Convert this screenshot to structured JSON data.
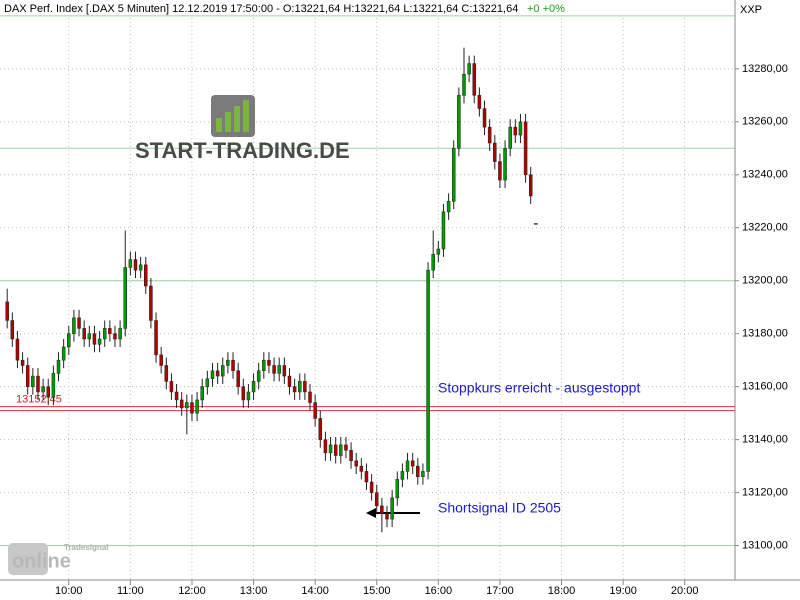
{
  "chart_data": {
    "type": "candlestick",
    "title": "DAX Perf. Index [.DAX  5 Minuten] 12.12.2019 17:50:00 - O:13221,64 H:13221,64 L:13221,64 C:13221,64",
    "change": "+0 +0%",
    "symbol": "XXP",
    "logo": "START-TRADING.DE",
    "watermark": {
      "brand": "Tradesignal",
      "product": "online"
    },
    "x": [
      540,
      545,
      550,
      555,
      560,
      565,
      570,
      575,
      580,
      585,
      590,
      595,
      600,
      605,
      610,
      615,
      620,
      625,
      630,
      635,
      640,
      645,
      650,
      655,
      660,
      665,
      670,
      675,
      680,
      685,
      690,
      695,
      700,
      705,
      710,
      715,
      720,
      725,
      730,
      735,
      740,
      745,
      750,
      755,
      760,
      765,
      770,
      775,
      780,
      785,
      790,
      795,
      800,
      805,
      810,
      815,
      820,
      825,
      830,
      835,
      840,
      845,
      850,
      855,
      860,
      865,
      870,
      875,
      880,
      885,
      890,
      895,
      900,
      905,
      910,
      915,
      920,
      925,
      930,
      935,
      940,
      945,
      950,
      955,
      960,
      965,
      970,
      975,
      980,
      985,
      990,
      995,
      1000,
      1005,
      1010,
      1015,
      1020,
      1025,
      1030,
      1035,
      1040,
      1045,
      1050,
      1055
    ],
    "open": [
      13192,
      13185,
      13178,
      13170,
      13168,
      13160,
      13164,
      13158,
      13160,
      13156,
      13165,
      13170,
      13175,
      13180,
      13186,
      13182,
      13178,
      13180,
      13176,
      13178,
      13182,
      13180,
      13178,
      13182,
      13205,
      13208,
      13204,
      13206,
      13198,
      13185,
      13172,
      13168,
      13162,
      13158,
      13155,
      13152,
      13154,
      13150,
      13155,
      13160,
      13163,
      13166,
      13164,
      13168,
      13170,
      13166,
      13160,
      13155,
      13158,
      13162,
      13166,
      13170,
      13168,
      13165,
      13168,
      13164,
      13160,
      13158,
      13162,
      13158,
      13154,
      13148,
      13140,
      13135,
      13138,
      13134,
      13138,
      13136,
      13132,
      13130,
      13128,
      13124,
      13120,
      13115,
      13112,
      13110,
      13118,
      13125,
      13128,
      13132,
      13130,
      13126,
      13128,
      13204,
      13210,
      13212,
      13226,
      13230,
      13250,
      13270,
      13278,
      13282,
      13270,
      13265,
      13258,
      13252,
      13245,
      13238,
      13250,
      13258,
      13255,
      13260,
      13240,
      13221.64
    ],
    "high": [
      13197,
      13188,
      13181,
      13173,
      13171,
      13167,
      13167,
      13163,
      13163,
      13168,
      13173,
      13178,
      13183,
      13189,
      13189,
      13185,
      13183,
      13183,
      13181,
      13185,
      13185,
      13183,
      13185,
      13219,
      13211,
      13211,
      13209,
      13209,
      13201,
      13188,
      13175,
      13171,
      13165,
      13161,
      13158,
      13157,
      13157,
      13158,
      13163,
      13166,
      13169,
      13169,
      13171,
      13173,
      13173,
      13169,
      13163,
      13161,
      13165,
      13169,
      13173,
      13173,
      13171,
      13171,
      13171,
      13167,
      13163,
      13165,
      13165,
      13161,
      13157,
      13151,
      13143,
      13141,
      13141,
      13141,
      13141,
      13139,
      13135,
      13133,
      13131,
      13127,
      13123,
      13118,
      13115,
      13121,
      13128,
      13131,
      13135,
      13135,
      13133,
      13131,
      13207,
      13219,
      13215,
      13229,
      13233,
      13253,
      13273,
      13288,
      13285,
      13285,
      13273,
      13268,
      13261,
      13255,
      13248,
      13253,
      13261,
      13261,
      13263,
      13263,
      13243,
      13221.64
    ],
    "low": [
      13182,
      13175,
      13167,
      13165,
      13157,
      13157,
      13155,
      13155,
      13153,
      13153,
      13162,
      13167,
      13172,
      13177,
      13179,
      13175,
      13175,
      13173,
      13173,
      13175,
      13177,
      13175,
      13175,
      13179,
      13202,
      13201,
      13201,
      13195,
      13182,
      13169,
      13165,
      13159,
      13155,
      13152,
      13149,
      13142,
      13147,
      13147,
      13152,
      13157,
      13160,
      13161,
      13161,
      13165,
      13163,
      13157,
      13152,
      13152,
      13155,
      13159,
      13163,
      13165,
      13162,
      13162,
      13161,
      13157,
      13155,
      13155,
      13155,
      13151,
      13145,
      13137,
      13132,
      13132,
      13131,
      13131,
      13133,
      13129,
      13127,
      13125,
      13121,
      13117,
      13112,
      13105,
      13107,
      13107,
      13115,
      13122,
      13125,
      13127,
      13123,
      13123,
      13125,
      13201,
      13207,
      13209,
      13223,
      13227,
      13247,
      13267,
      13275,
      13267,
      13262,
      13255,
      13249,
      13242,
      13235,
      13235,
      13247,
      13252,
      13252,
      13237,
      13229,
      13221.64
    ],
    "close": [
      13185,
      13178,
      13170,
      13168,
      13160,
      13164,
      13158,
      13160,
      13156,
      13165,
      13170,
      13175,
      13180,
      13186,
      13182,
      13178,
      13180,
      13176,
      13178,
      13182,
      13180,
      13178,
      13182,
      13205,
      13208,
      13204,
      13206,
      13198,
      13185,
      13172,
      13168,
      13162,
      13158,
      13155,
      13152,
      13154,
      13150,
      13155,
      13160,
      13163,
      13166,
      13164,
      13168,
      13170,
      13166,
      13160,
      13155,
      13158,
      13162,
      13166,
      13170,
      13168,
      13165,
      13168,
      13164,
      13160,
      13158,
      13162,
      13158,
      13154,
      13148,
      13140,
      13135,
      13138,
      13134,
      13138,
      13136,
      13132,
      13130,
      13128,
      13124,
      13120,
      13115,
      13112,
      13110,
      13118,
      13125,
      13128,
      13132,
      13130,
      13126,
      13128,
      13204,
      13210,
      13212,
      13226,
      13230,
      13250,
      13270,
      13278,
      13282,
      13270,
      13265,
      13258,
      13252,
      13245,
      13238,
      13250,
      13258,
      13255,
      13260,
      13240,
      13232,
      13221.64
    ],
    "up_color": "#009a00",
    "down_color": "#b00000",
    "xlim": [
      533,
      1249
    ],
    "xticks": [
      {
        "value": 600,
        "label": "10:00"
      },
      {
        "value": 660,
        "label": "11:00"
      },
      {
        "value": 720,
        "label": "12:00"
      },
      {
        "value": 780,
        "label": "13:00"
      },
      {
        "value": 840,
        "label": "14:00"
      },
      {
        "value": 900,
        "label": "15:00"
      },
      {
        "value": 960,
        "label": "16:00"
      },
      {
        "value": 1020,
        "label": "17:00"
      },
      {
        "value": 1080,
        "label": "18:00"
      },
      {
        "value": 1140,
        "label": "19:00"
      },
      {
        "value": 1200,
        "label": "20:00"
      }
    ],
    "ylim": [
      13087,
      13306
    ],
    "yticks": [
      {
        "value": 13100,
        "label": "13100,00"
      },
      {
        "value": 13120,
        "label": "13120,00"
      },
      {
        "value": 13140,
        "label": "13140,00"
      },
      {
        "value": 13160,
        "label": "13160,00"
      },
      {
        "value": 13180,
        "label": "13180,00"
      },
      {
        "value": 13200,
        "label": "13200,00"
      },
      {
        "value": 13220,
        "label": "13220,00"
      },
      {
        "value": 13240,
        "label": "13240,00"
      },
      {
        "value": 13260,
        "label": "13260,00"
      },
      {
        "value": 13280,
        "label": "13280,00"
      }
    ],
    "grid": true,
    "level_lines": [
      13100,
      13200,
      13250,
      13300
    ],
    "stop_level": {
      "value": 13152.45,
      "label": "13152,45"
    },
    "annotations": [
      "Stoppkurs erreicht - ausgestoppt",
      "Shortsignal ID 2505"
    ]
  }
}
